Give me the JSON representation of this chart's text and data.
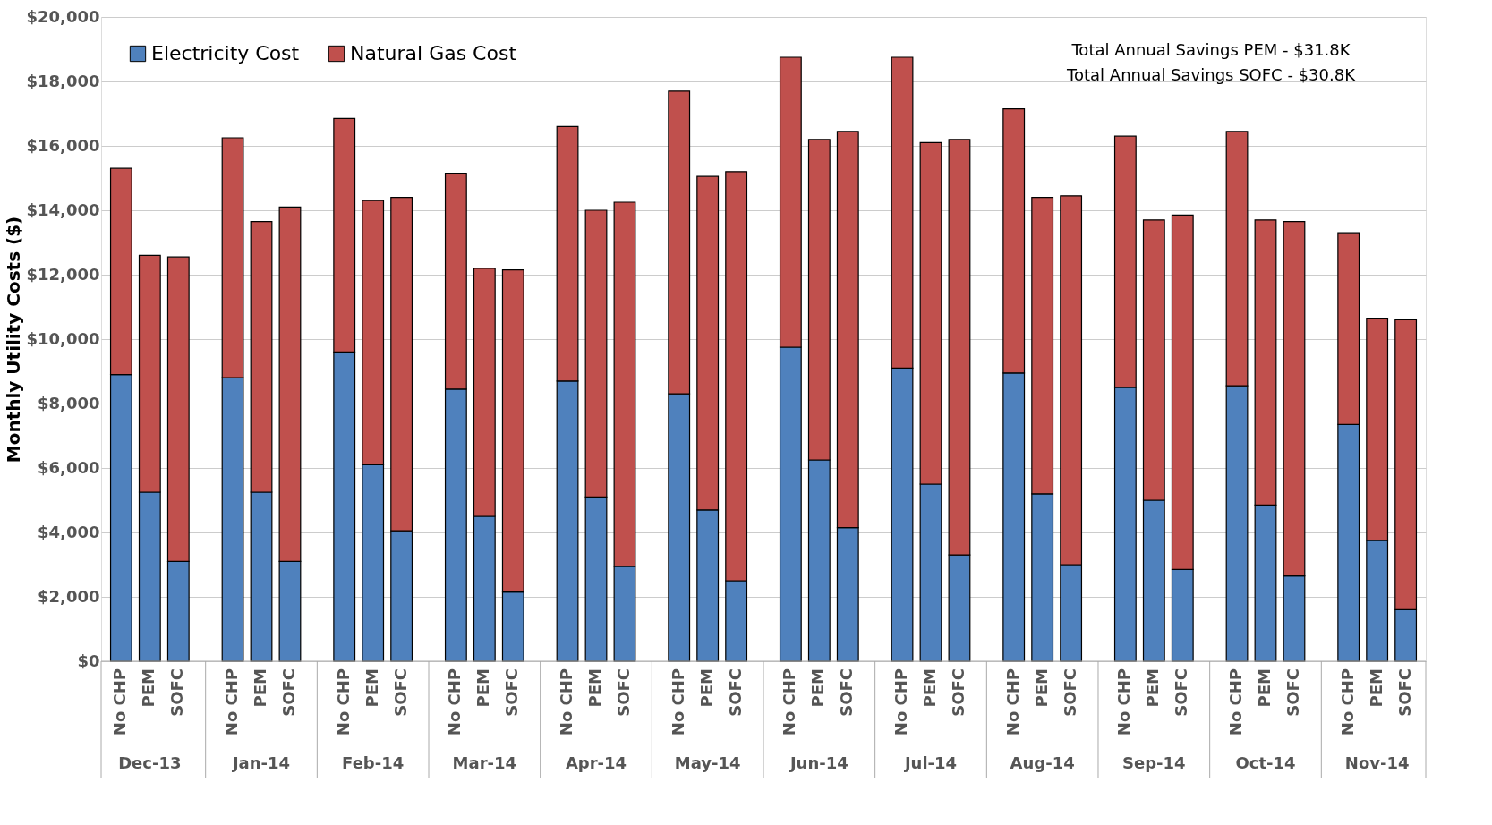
{
  "chart_data": {
    "type": "bar",
    "stacked": true,
    "ylabel": "Monthly Utility Costs ($)",
    "categories": [
      "No CHP",
      "PEM",
      "SOFC",
      "No CHP",
      "PEM",
      "SOFC",
      "No CHP",
      "PEM",
      "SOFC",
      "No CHP",
      "PEM",
      "SOFC",
      "No CHP",
      "PEM",
      "SOFC",
      "No CHP",
      "PEM",
      "SOFC",
      "No CHP",
      "PEM",
      "SOFC",
      "No CHP",
      "PEM",
      "SOFC",
      "No CHP",
      "PEM",
      "SOFC",
      "No CHP",
      "PEM",
      "SOFC",
      "No CHP",
      "PEM",
      "SOFC",
      "No CHP",
      "PEM",
      "SOFC"
    ],
    "series": [
      {
        "name": "Electricity Cost",
        "color": "#4f81bd",
        "values": [
          8900,
          5250,
          3100,
          8800,
          5250,
          3100,
          9600,
          6100,
          4050,
          8450,
          4500,
          2150,
          8700,
          5100,
          2950,
          8300,
          4700,
          2500,
          9750,
          6250,
          4150,
          9100,
          5500,
          3300,
          8950,
          5200,
          3000,
          8500,
          5000,
          2850,
          8550,
          4850,
          2650,
          7350,
          3750,
          1600
        ]
      },
      {
        "name": "Natural Gas Cost",
        "color": "#c0504d",
        "values": [
          6400,
          7350,
          9450,
          7450,
          8400,
          11000,
          7250,
          8200,
          10350,
          6700,
          7700,
          10000,
          7900,
          8900,
          11300,
          9400,
          10350,
          12700,
          9000,
          9950,
          12300,
          9650,
          10600,
          12900,
          8200,
          9200,
          11450,
          7800,
          8700,
          11000,
          7900,
          8850,
          11000,
          5950,
          6900,
          9000
        ]
      }
    ],
    "ylim": [
      0,
      20000
    ],
    "yticks": [
      {
        "value": 0,
        "label": "$0"
      },
      {
        "value": 2000,
        "label": "$2,000"
      },
      {
        "value": 4000,
        "label": "$4,000"
      },
      {
        "value": 6000,
        "label": "$6,000"
      },
      {
        "value": 8000,
        "label": "$8,000"
      },
      {
        "value": 10000,
        "label": "$10,000"
      },
      {
        "value": 12000,
        "label": "$12,000"
      },
      {
        "value": 14000,
        "label": "$14,000"
      },
      {
        "value": 16000,
        "label": "$16,000"
      },
      {
        "value": 18000,
        "label": "$18,000"
      },
      {
        "value": 20000,
        "label": "$20,000"
      }
    ],
    "grid": "y",
    "legend": "top left",
    "annotations": [
      "Total Annual Savings PEM - $31.8K",
      "Total Annual Savings SOFC - $30.8K",
      "Dec-13",
      "Jan-14",
      "Feb-14",
      "Mar-14",
      "Apr-14",
      "May-14",
      "Jun-14",
      "Jul-14",
      "Aug-14",
      "Sep-14",
      "Oct-14",
      "Nov-14"
    ]
  }
}
